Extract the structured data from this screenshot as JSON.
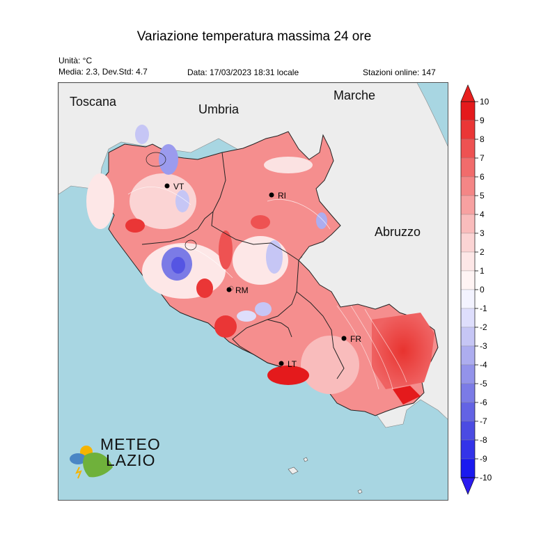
{
  "title": "Variazione temperatura massima 24 ore",
  "unit": "Unità: °C",
  "stats": "Media: 2.3, Dev.Std: 4.7",
  "date": "Data: 17/03/2023 18:31 locale",
  "stations": "Stazioni online: 147",
  "regions": {
    "toscana": "Toscana",
    "umbria": "Umbria",
    "marche": "Marche",
    "abruzzo": "Abruzzo"
  },
  "cities": {
    "vt": "VT",
    "ri": "RI",
    "rm": "RM",
    "fr": "FR",
    "lt": "LT"
  },
  "logo": {
    "line1": "METEO",
    "line2": "LAZIO"
  },
  "colorbar": {
    "ticks": [
      "10",
      "9",
      "8",
      "7",
      "6",
      "5",
      "4",
      "3",
      "2",
      "1",
      "0",
      "-1",
      "-2",
      "-3",
      "-4",
      "-5",
      "-6",
      "-7",
      "-8",
      "-9",
      "-10"
    ],
    "colors": [
      "#e41a1c",
      "#ea3636",
      "#ee5252",
      "#f16c6c",
      "#f48686",
      "#f7a1a1",
      "#f9bcbc",
      "#fbd4d4",
      "#fde7e7",
      "#fff4f4",
      "#f3f3ff",
      "#dedefc",
      "#c6c6f5",
      "#adadef",
      "#9393ea",
      "#7b7be6",
      "#6363e4",
      "#4b4be2",
      "#3333e8",
      "#1a1aef"
    ],
    "max_color": "#e8201f",
    "min_color": "#2b1cf0"
  },
  "colors": {
    "sea": "#a8d6e2",
    "land_outside": "#ededed",
    "border": "#222222"
  }
}
